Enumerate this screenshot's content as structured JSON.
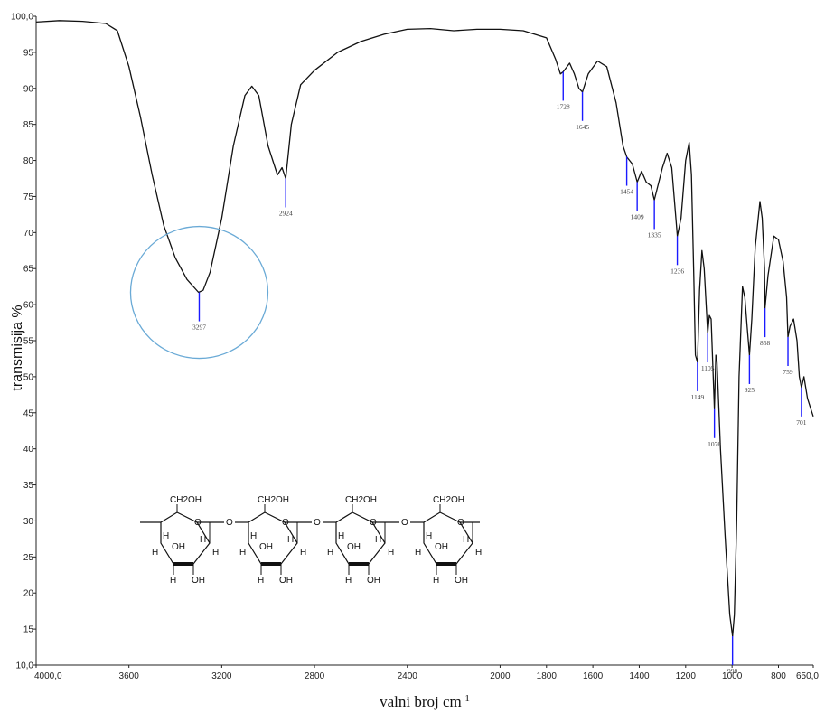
{
  "chart_data": {
    "type": "line",
    "xlabel": "valni broj cm",
    "xlabel_sup": "-1",
    "ylabel": "transmisija %",
    "xlim": [
      4000,
      650
    ],
    "ylim": [
      10,
      100
    ],
    "x_reversed": true,
    "x_ticks": [
      {
        "value": 4000,
        "label": "4000,0"
      },
      {
        "value": 3600,
        "label": "3600"
      },
      {
        "value": 3200,
        "label": "3200"
      },
      {
        "value": 2800,
        "label": "2800"
      },
      {
        "value": 2400,
        "label": "2400"
      },
      {
        "value": 2000,
        "label": "2000"
      },
      {
        "value": 1800,
        "label": "1800"
      },
      {
        "value": 1600,
        "label": "1600"
      },
      {
        "value": 1400,
        "label": "1400"
      },
      {
        "value": 1200,
        "label": "1200"
      },
      {
        "value": 1000,
        "label": "1000"
      },
      {
        "value": 800,
        "label": "800"
      },
      {
        "value": 650,
        "label": "650,0"
      }
    ],
    "y_ticks": [
      {
        "value": 100,
        "label": "100,0"
      },
      {
        "value": 95,
        "label": "95"
      },
      {
        "value": 90,
        "label": "90"
      },
      {
        "value": 85,
        "label": "85"
      },
      {
        "value": 80,
        "label": "80"
      },
      {
        "value": 75,
        "label": "75"
      },
      {
        "value": 70,
        "label": "70"
      },
      {
        "value": 65,
        "label": "65"
      },
      {
        "value": 60,
        "label": "60"
      },
      {
        "value": 55,
        "label": "55"
      },
      {
        "value": 50,
        "label": "50"
      },
      {
        "value": 45,
        "label": "45"
      },
      {
        "value": 40,
        "label": "40"
      },
      {
        "value": 35,
        "label": "35"
      },
      {
        "value": 30,
        "label": "30"
      },
      {
        "value": 25,
        "label": "25"
      },
      {
        "value": 20,
        "label": "20"
      },
      {
        "value": 15,
        "label": "15"
      },
      {
        "value": 10,
        "label": "10,0"
      }
    ],
    "series": [
      {
        "color": "#111111",
        "points": [
          [
            4000,
            99.2
          ],
          [
            3900,
            99.4
          ],
          [
            3800,
            99.3
          ],
          [
            3700,
            99.0
          ],
          [
            3650,
            98.0
          ],
          [
            3600,
            93.0
          ],
          [
            3550,
            86.0
          ],
          [
            3500,
            78.0
          ],
          [
            3450,
            71.0
          ],
          [
            3400,
            66.5
          ],
          [
            3350,
            63.5
          ],
          [
            3300,
            61.7
          ],
          [
            3280,
            62.0
          ],
          [
            3250,
            64.5
          ],
          [
            3200,
            72.0
          ],
          [
            3150,
            82.0
          ],
          [
            3100,
            89.0
          ],
          [
            3070,
            90.3
          ],
          [
            3040,
            89.0
          ],
          [
            3000,
            82.0
          ],
          [
            2960,
            78.0
          ],
          [
            2940,
            79.0
          ],
          [
            2924,
            77.5
          ],
          [
            2900,
            85.0
          ],
          [
            2860,
            90.5
          ],
          [
            2800,
            92.5
          ],
          [
            2700,
            95.0
          ],
          [
            2600,
            96.5
          ],
          [
            2500,
            97.5
          ],
          [
            2400,
            98.2
          ],
          [
            2300,
            98.3
          ],
          [
            2200,
            98.0
          ],
          [
            2100,
            98.2
          ],
          [
            2000,
            98.2
          ],
          [
            1900,
            98.0
          ],
          [
            1800,
            97.0
          ],
          [
            1760,
            94.0
          ],
          [
            1740,
            92.0
          ],
          [
            1728,
            92.3
          ],
          [
            1700,
            93.5
          ],
          [
            1680,
            92.0
          ],
          [
            1660,
            90.0
          ],
          [
            1645,
            89.5
          ],
          [
            1620,
            92.0
          ],
          [
            1580,
            93.8
          ],
          [
            1540,
            93.0
          ],
          [
            1500,
            88.0
          ],
          [
            1470,
            82.0
          ],
          [
            1454,
            80.5
          ],
          [
            1430,
            79.5
          ],
          [
            1409,
            77.0
          ],
          [
            1390,
            78.5
          ],
          [
            1370,
            77.0
          ],
          [
            1350,
            76.5
          ],
          [
            1335,
            74.5
          ],
          [
            1300,
            79.0
          ],
          [
            1280,
            81.0
          ],
          [
            1260,
            79.0
          ],
          [
            1250,
            75.0
          ],
          [
            1236,
            69.5
          ],
          [
            1220,
            72.0
          ],
          [
            1200,
            80.0
          ],
          [
            1185,
            82.5
          ],
          [
            1175,
            78.0
          ],
          [
            1165,
            64.0
          ],
          [
            1158,
            53.0
          ],
          [
            1149,
            52.0
          ],
          [
            1140,
            62.0
          ],
          [
            1130,
            67.5
          ],
          [
            1120,
            65.0
          ],
          [
            1110,
            59.0
          ],
          [
            1105,
            56.0
          ],
          [
            1098,
            58.5
          ],
          [
            1090,
            58.0
          ],
          [
            1080,
            49.0
          ],
          [
            1076,
            45.5
          ],
          [
            1070,
            53.0
          ],
          [
            1065,
            52.0
          ],
          [
            1050,
            40.0
          ],
          [
            1030,
            28.0
          ],
          [
            1010,
            17.0
          ],
          [
            998,
            14.0
          ],
          [
            990,
            17.0
          ],
          [
            980,
            30.0
          ],
          [
            970,
            50.0
          ],
          [
            955,
            62.5
          ],
          [
            945,
            61.0
          ],
          [
            935,
            57.0
          ],
          [
            925,
            53.0
          ],
          [
            915,
            58.0
          ],
          [
            900,
            68.0
          ],
          [
            880,
            74.3
          ],
          [
            870,
            72.0
          ],
          [
            860,
            65.0
          ],
          [
            858,
            59.5
          ],
          [
            845,
            64.0
          ],
          [
            820,
            69.5
          ],
          [
            800,
            69.0
          ],
          [
            780,
            66.0
          ],
          [
            765,
            61.0
          ],
          [
            759,
            55.5
          ],
          [
            750,
            57.0
          ],
          [
            735,
            58.0
          ],
          [
            720,
            55.0
          ],
          [
            710,
            50.0
          ],
          [
            701,
            48.5
          ],
          [
            690,
            50.0
          ],
          [
            675,
            47.0
          ],
          [
            660,
            45.5
          ],
          [
            650,
            44.5
          ]
        ]
      }
    ],
    "annotations": [
      {
        "x": 3297,
        "y": 61.7,
        "label": "3297"
      },
      {
        "x": 2924,
        "y": 77.5,
        "label": "2924"
      },
      {
        "x": 1728,
        "y": 92.3,
        "label": "1728"
      },
      {
        "x": 1645,
        "y": 89.5,
        "label": "1645"
      },
      {
        "x": 1454,
        "y": 80.5,
        "label": "1454"
      },
      {
        "x": 1409,
        "y": 77.0,
        "label": "1409"
      },
      {
        "x": 1335,
        "y": 74.5,
        "label": "1335"
      },
      {
        "x": 1236,
        "y": 69.5,
        "label": "1236"
      },
      {
        "x": 1149,
        "y": 52.0,
        "label": "1149"
      },
      {
        "x": 1105,
        "y": 56.0,
        "label": "1105"
      },
      {
        "x": 1076,
        "y": 45.5,
        "label": "1076"
      },
      {
        "x": 998,
        "y": 14.0,
        "label": "998"
      },
      {
        "x": 925,
        "y": 53.0,
        "label": "925"
      },
      {
        "x": 858,
        "y": 59.5,
        "label": "858"
      },
      {
        "x": 759,
        "y": 55.5,
        "label": "759"
      },
      {
        "x": 701,
        "y": 48.5,
        "label": "701"
      }
    ],
    "highlight": {
      "x": 3297,
      "y": 61.7,
      "color": "#6aaad6"
    },
    "annotation_color": "#1a1aff",
    "grid": false
  },
  "structure": {
    "units": [
      {
        "ch2oh": "CH2OH",
        "oh_ring": "OH",
        "oh_low": "OH",
        "h": "H"
      },
      {
        "ch2oh": "CH2OH",
        "oh_ring": "OH",
        "oh_low": "OH",
        "h": "H"
      },
      {
        "ch2oh": "CH2OH",
        "oh_ring": "OH",
        "oh_low": "OH",
        "h": "H"
      },
      {
        "ch2oh": "CH2OH",
        "oh_ring": "OH",
        "oh_low": "OH",
        "h": "H"
      }
    ],
    "ring_o": "O",
    "bridge_o": "O"
  }
}
